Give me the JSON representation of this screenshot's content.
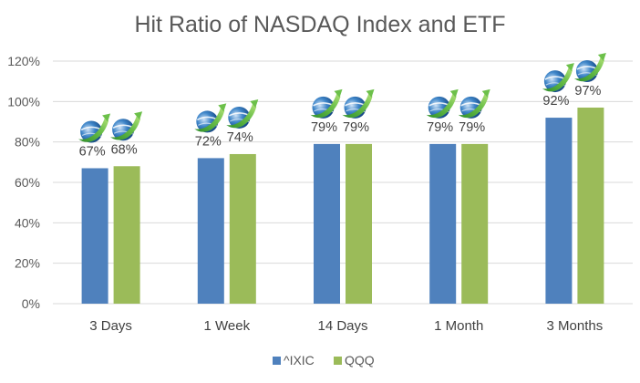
{
  "chart_data": {
    "type": "bar",
    "title": "Hit Ratio of NASDAQ Index and ETF",
    "categories": [
      "3 Days",
      "1 Week",
      "14 Days",
      "1 Month",
      "3 Months"
    ],
    "series": [
      {
        "name": "^IXIC",
        "color": "#4f81bd",
        "values": [
          67,
          72,
          79,
          79,
          92
        ],
        "labels": [
          "67%",
          "72%",
          "79%",
          "79%",
          "92%"
        ]
      },
      {
        "name": "QQQ",
        "color": "#9bbb59",
        "values": [
          68,
          74,
          79,
          79,
          97
        ],
        "labels": [
          "68%",
          "74%",
          "79%",
          "79%",
          "97%"
        ]
      }
    ],
    "yticks": [
      0,
      20,
      40,
      60,
      80,
      100,
      120
    ],
    "ytick_labels": [
      "0%",
      "20%",
      "40%",
      "60%",
      "80%",
      "100%",
      "120%"
    ],
    "ylim": [
      0,
      120
    ],
    "xlabel": "",
    "ylabel": "",
    "grid": true,
    "legend_position": "bottom",
    "gridline_color": "#d9d9d9",
    "bar_icon": "blue-green-swoosh-logo-icon"
  }
}
